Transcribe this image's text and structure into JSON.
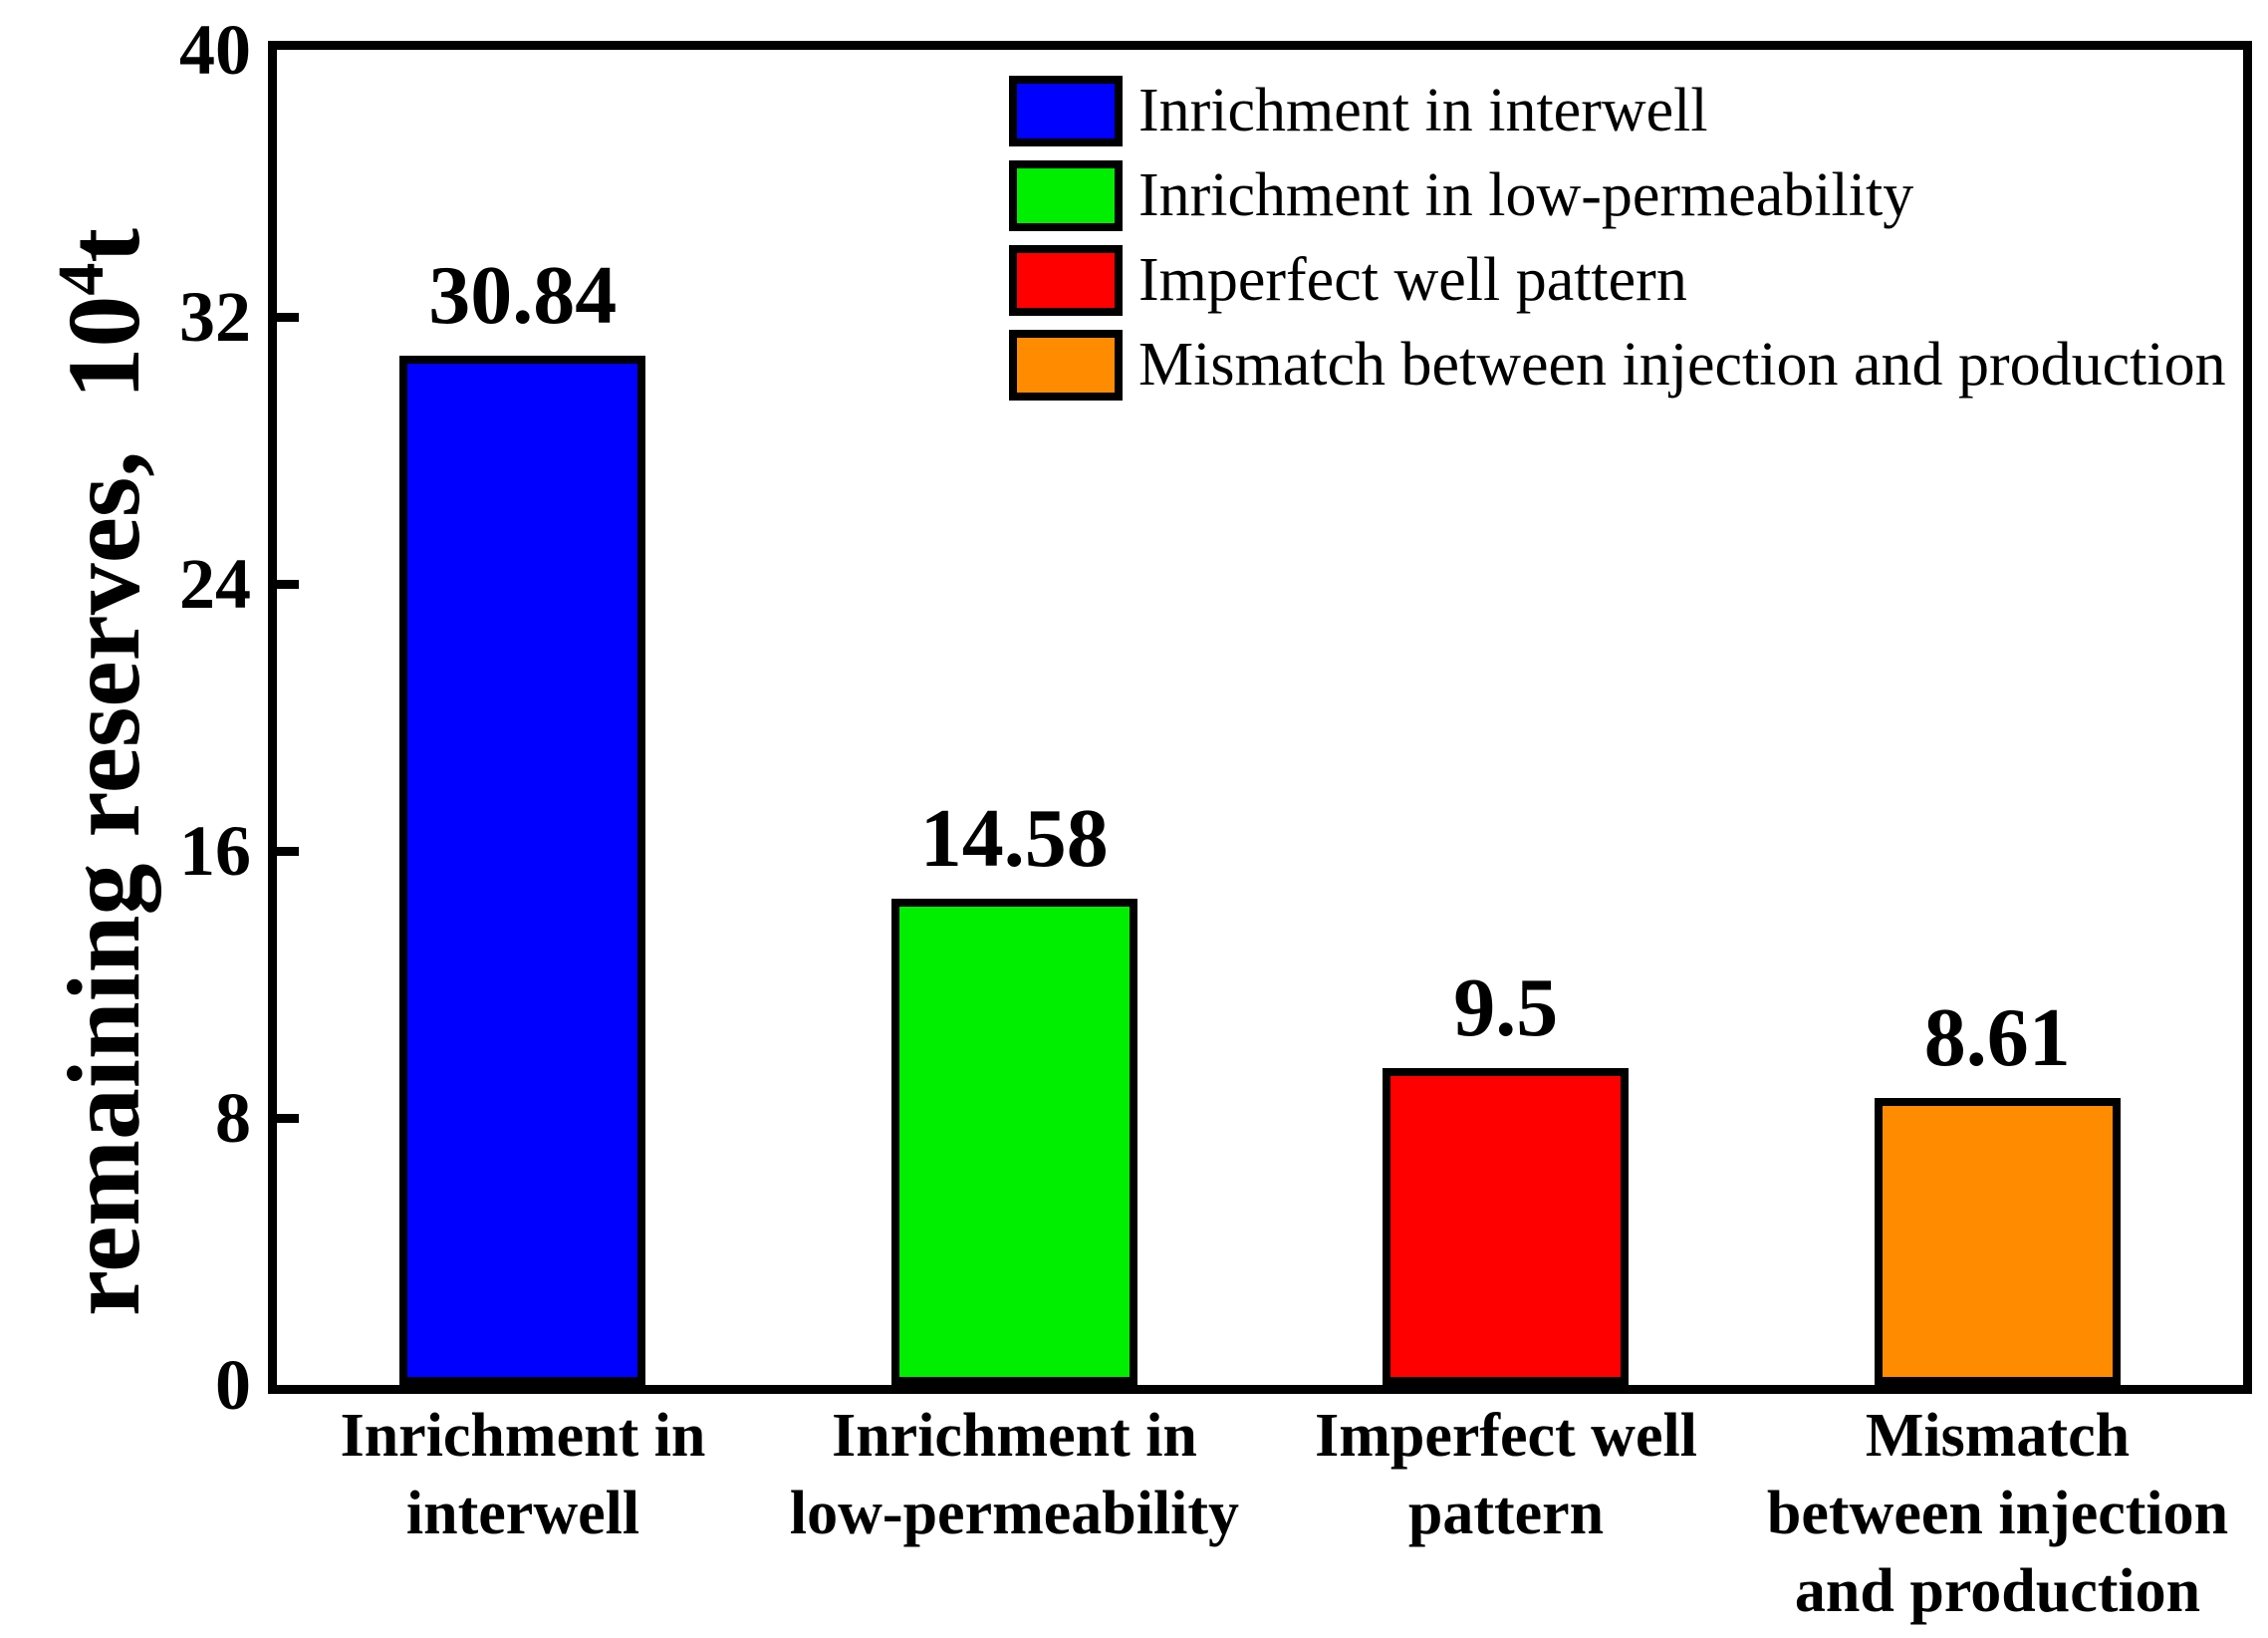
{
  "chart_data": {
    "type": "bar",
    "title": "",
    "categories": [
      "Inrichment in interwell",
      "Inrichment in low-permeability",
      "Imperfect well pattern",
      "Mismatch between injection and production"
    ],
    "category_lines": [
      [
        "Inrichment in",
        "interwell"
      ],
      [
        "Inrichment in",
        "low-permeability"
      ],
      [
        "Imperfect well",
        "pattern"
      ],
      [
        "Mismatch",
        "between injection",
        "and production"
      ]
    ],
    "values": [
      30.84,
      14.58,
      9.5,
      8.61
    ],
    "value_labels": [
      "30.84",
      "14.58",
      "9.5",
      "8.61"
    ],
    "bar_colors": [
      "#0000FF",
      "#00EE00",
      "#FF0000",
      "#FF8C00"
    ],
    "bar_border_color": "#000000",
    "xlabel": "",
    "ylabel": {
      "prefix": "remaining reserves,  10",
      "sup": "4",
      "suffix": "t",
      "plain": "remaining reserves, 10^4 t"
    },
    "ylim": [
      0,
      40
    ],
    "yticks": [
      0,
      8,
      16,
      24,
      32,
      40
    ],
    "grid": false,
    "legend": {
      "position": "upper-center",
      "entries": [
        {
          "label": "Inrichment in interwell",
          "color": "#0000FF"
        },
        {
          "label": "Inrichment in low-permeability",
          "color": "#00EE00"
        },
        {
          "label": "Imperfect well pattern",
          "color": "#FF0000"
        },
        {
          "label": "Mismatch between injection and production",
          "color": "#FF8C00"
        }
      ]
    }
  }
}
